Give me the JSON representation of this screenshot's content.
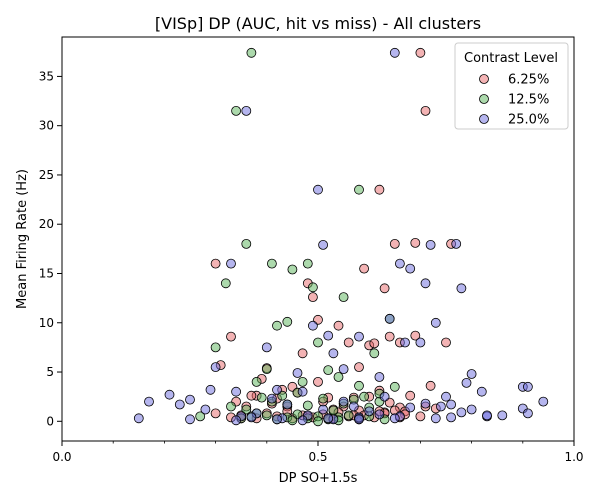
{
  "chart_data": {
    "type": "scatter",
    "title": "[VISp] DP (AUC, hit vs miss) - All clusters",
    "xlabel": "DP SO+1.5s",
    "ylabel": "Mean Firing Rate (Hz)",
    "xlim": [
      0.0,
      1.0
    ],
    "ylim": [
      -2,
      39
    ],
    "xticks": [
      {
        "value": 0.0,
        "label": "0.0"
      },
      {
        "value": 0.5,
        "label": "0.5"
      },
      {
        "value": 1.0,
        "label": "1.0"
      }
    ],
    "yticks": [
      {
        "value": 0,
        "label": "0"
      },
      {
        "value": 5,
        "label": "5"
      },
      {
        "value": 10,
        "label": "10"
      },
      {
        "value": 15,
        "label": "15"
      },
      {
        "value": 20,
        "label": "20"
      },
      {
        "value": 25,
        "label": "25"
      },
      {
        "value": 30,
        "label": "30"
      },
      {
        "value": 35,
        "label": "35"
      }
    ],
    "grid": false,
    "legend": {
      "title": "Contrast Level",
      "placement": "top-right"
    },
    "series": [
      {
        "name": "6.25%",
        "color": "#e8686a",
        "x": [
          0.3,
          0.33,
          0.38,
          0.4,
          0.43,
          0.45,
          0.47,
          0.48,
          0.49,
          0.5,
          0.52,
          0.54,
          0.56,
          0.58,
          0.59,
          0.6,
          0.61,
          0.62,
          0.63,
          0.64,
          0.65,
          0.66,
          0.68,
          0.69,
          0.7,
          0.71,
          0.72,
          0.75,
          0.76,
          0.31,
          0.34,
          0.36,
          0.37,
          0.39,
          0.41,
          0.42,
          0.44,
          0.46,
          0.5,
          0.51,
          0.53,
          0.55,
          0.57,
          0.58,
          0.6,
          0.62,
          0.63,
          0.64,
          0.66,
          0.67,
          0.69,
          0.71,
          0.73,
          0.33,
          0.35,
          0.38,
          0.4,
          0.42,
          0.45,
          0.47,
          0.49,
          0.51,
          0.52,
          0.54,
          0.56,
          0.58,
          0.59,
          0.61,
          0.63,
          0.65,
          0.67,
          0.7,
          0.3,
          0.35,
          0.44,
          0.48,
          0.53,
          0.57,
          0.62,
          0.66
        ],
        "y": [
          16.0,
          8.6,
          2.6,
          5.4,
          3.2,
          3.5,
          6.9,
          14.0,
          12.6,
          10.3,
          2.4,
          9.7,
          8.0,
          5.5,
          15.5,
          7.7,
          7.9,
          23.5,
          13.5,
          8.6,
          18.0,
          8.0,
          2.6,
          18.1,
          37.4,
          31.5,
          3.6,
          8.0,
          18.0,
          5.7,
          2.0,
          1.5,
          2.6,
          4.3,
          1.8,
          2.3,
          1.5,
          2.9,
          4.0,
          2.0,
          1.2,
          1.5,
          2.4,
          1.1,
          2.5,
          3.1,
          0.9,
          1.9,
          1.4,
          1.0,
          8.7,
          1.5,
          1.3,
          0.4,
          0.6,
          0.3,
          0.8,
          0.5,
          0.3,
          0.6,
          0.4,
          0.7,
          0.3,
          0.9,
          0.5,
          0.2,
          0.6,
          0.4,
          0.8,
          1.1,
          0.7,
          0.5,
          0.8,
          0.3,
          1.0,
          0.5,
          0.3,
          0.6,
          1.0,
          0.4
        ]
      },
      {
        "name": "12.5%",
        "color": "#5ab45a",
        "x": [
          0.3,
          0.32,
          0.34,
          0.36,
          0.37,
          0.38,
          0.4,
          0.41,
          0.42,
          0.44,
          0.45,
          0.47,
          0.48,
          0.49,
          0.5,
          0.52,
          0.54,
          0.55,
          0.58,
          0.59,
          0.61,
          0.62,
          0.64,
          0.65,
          0.27,
          0.33,
          0.36,
          0.38,
          0.39,
          0.41,
          0.43,
          0.44,
          0.46,
          0.48,
          0.51,
          0.53,
          0.55,
          0.57,
          0.58,
          0.6,
          0.62,
          0.35,
          0.37,
          0.4,
          0.42,
          0.44,
          0.46,
          0.48,
          0.5,
          0.52,
          0.54,
          0.56,
          0.58,
          0.6,
          0.63,
          0.45,
          0.5,
          0.54
        ],
        "y": [
          7.5,
          14.0,
          31.5,
          18.0,
          37.4,
          4.0,
          5.3,
          16.0,
          9.7,
          10.1,
          15.4,
          4.0,
          16.0,
          13.6,
          8.0,
          5.2,
          4.5,
          12.6,
          23.5,
          2.5,
          6.9,
          2.8,
          10.4,
          3.5,
          0.5,
          1.5,
          1.2,
          0.8,
          2.4,
          2.0,
          2.6,
          1.7,
          2.9,
          1.6,
          2.3,
          1.1,
          1.8,
          2.2,
          3.6,
          1.4,
          2.0,
          0.3,
          0.5,
          0.6,
          0.2,
          0.4,
          0.7,
          0.3,
          0.5,
          0.2,
          0.4,
          0.6,
          0.3,
          0.5,
          0.2,
          0.1,
          0.0,
          0.1
        ]
      },
      {
        "name": "25.0%",
        "color": "#6b6bde",
        "x": [
          0.15,
          0.17,
          0.21,
          0.23,
          0.25,
          0.28,
          0.29,
          0.3,
          0.33,
          0.34,
          0.36,
          0.4,
          0.42,
          0.46,
          0.49,
          0.5,
          0.51,
          0.52,
          0.53,
          0.55,
          0.58,
          0.62,
          0.64,
          0.65,
          0.66,
          0.67,
          0.68,
          0.7,
          0.71,
          0.72,
          0.73,
          0.75,
          0.76,
          0.77,
          0.78,
          0.79,
          0.8,
          0.82,
          0.83,
          0.9,
          0.91,
          0.94,
          0.41,
          0.44,
          0.47,
          0.51,
          0.55,
          0.57,
          0.6,
          0.63,
          0.68,
          0.71,
          0.74,
          0.78,
          0.8,
          0.83,
          0.9,
          0.35,
          0.38,
          0.43,
          0.48,
          0.53,
          0.58,
          0.62,
          0.66,
          0.73,
          0.76,
          0.86,
          0.91,
          0.25,
          0.34,
          0.37,
          0.42,
          0.47,
          0.52,
          0.58,
          0.65
        ],
        "y": [
          0.3,
          2.0,
          2.7,
          1.7,
          2.2,
          1.2,
          3.2,
          5.5,
          16.0,
          3.0,
          31.5,
          7.5,
          3.2,
          4.9,
          9.7,
          23.5,
          17.9,
          8.7,
          6.9,
          5.3,
          8.6,
          4.5,
          10.4,
          37.4,
          16.0,
          8.0,
          15.5,
          8.0,
          14.0,
          17.9,
          10.0,
          2.5,
          1.7,
          18.0,
          13.5,
          3.9,
          4.8,
          3.0,
          0.5,
          3.5,
          3.5,
          2.0,
          2.3,
          1.7,
          3.0,
          1.2,
          2.0,
          1.5,
          1.0,
          2.5,
          1.4,
          1.8,
          1.5,
          0.9,
          1.2,
          0.6,
          1.3,
          0.5,
          0.8,
          0.3,
          0.6,
          0.2,
          0.4,
          0.7,
          0.5,
          0.3,
          0.4,
          0.6,
          0.8,
          0.2,
          0.1,
          0.4,
          0.2,
          0.1,
          0.3,
          0.2,
          0.3
        ]
      }
    ]
  }
}
